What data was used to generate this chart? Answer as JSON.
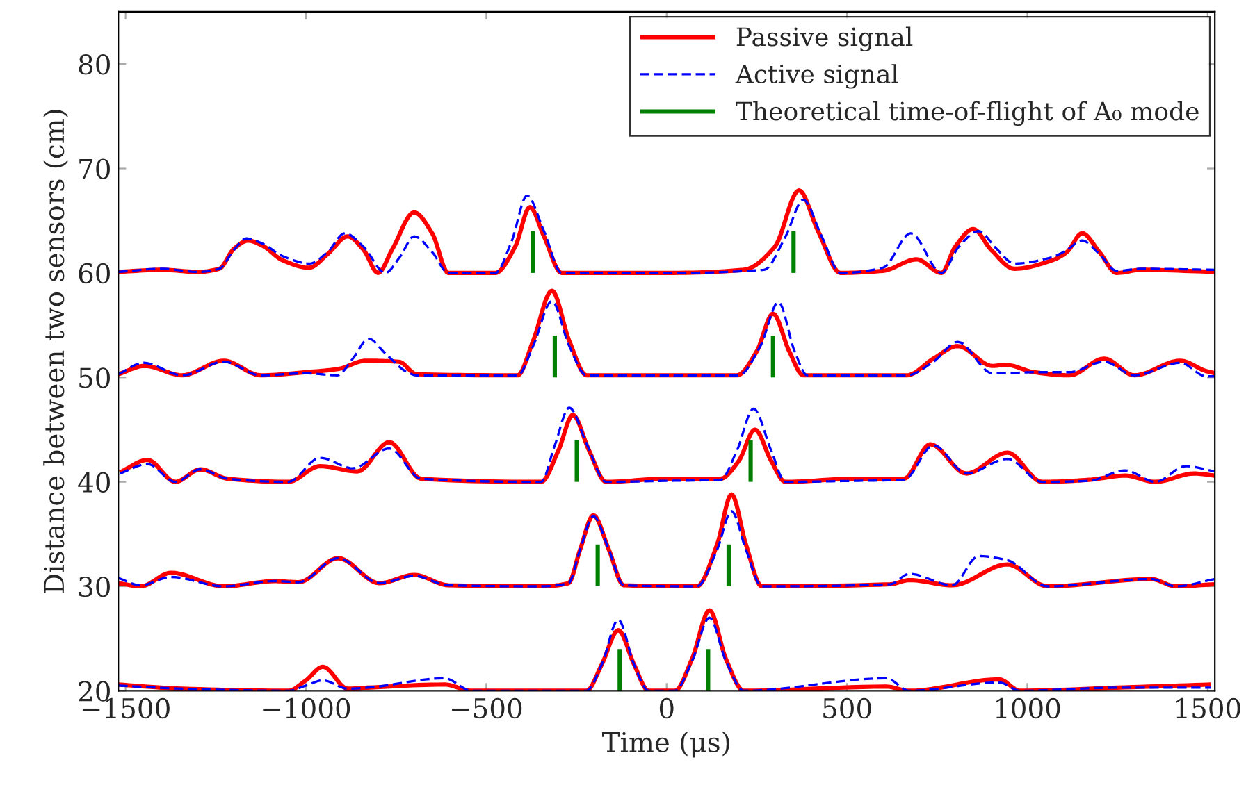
{
  "chart_data": {
    "type": "line",
    "xlabel": "Time (μs)",
    "ylabel": "Distance between two sensors (cm)",
    "xlim": [
      -1520,
      1520
    ],
    "ylim": [
      20,
      85
    ],
    "xticks": [
      -1500,
      -1000,
      -500,
      0,
      500,
      1000,
      1500
    ],
    "yticks": [
      20,
      30,
      40,
      50,
      60,
      70,
      80
    ],
    "grid": false,
    "legend": "top right",
    "marker": "none",
    "series": [
      {
        "name": "Passive signal",
        "color": "#ff0000",
        "line_style": "solid",
        "x": [
          -1520,
          -1400,
          -1300,
          -1240,
          -1200,
          -1160,
          -1120,
          -1064,
          -991,
          -940,
          -884,
          -840,
          -800,
          -760,
          -700,
          -650,
          -605,
          -475,
          -420,
          -379,
          -340,
          -291,
          0,
          214,
          300,
          367,
          420,
          482,
          600,
          693,
          762,
          800,
          850,
          900,
          964,
          1068,
          1110,
          1152,
          1200,
          1248,
          1316,
          1520
        ],
        "values": [
          60.1,
          60.3,
          60.1,
          60.4,
          62.3,
          63.1,
          62.6,
          61.2,
          60.5,
          61.8,
          63.5,
          62.2,
          60.0,
          62.3,
          65.8,
          63.8,
          60.0,
          60.0,
          62.5,
          66.3,
          63.5,
          60.0,
          60.0,
          60.3,
          62.5,
          67.9,
          64.0,
          60.0,
          60.2,
          61.3,
          60.0,
          62.5,
          64.2,
          62.2,
          60.4,
          61.2,
          62.0,
          63.8,
          62.0,
          60.0,
          60.3,
          60.1
        ]
      },
      {
        "name": "Active signal",
        "color": "#0000ff",
        "line_style": "dashed",
        "x": [
          -1520,
          -1400,
          -1300,
          -1240,
          -1200,
          -1165,
          -1120,
          -1064,
          -990,
          -940,
          -892,
          -840,
          -780,
          -740,
          -700,
          -650,
          -605,
          -475,
          -430,
          -387,
          -340,
          -291,
          0,
          270,
          330,
          379,
          430,
          482,
          600,
          677,
          762,
          810,
          865,
          915,
          964,
          1068,
          1110,
          1152,
          1200,
          1248,
          1316,
          1520
        ],
        "values": [
          60.1,
          60.4,
          60.1,
          60.4,
          62.2,
          63.3,
          62.8,
          61.6,
          60.9,
          62.0,
          63.8,
          62.5,
          60.0,
          61.5,
          63.5,
          62.0,
          60.0,
          60.0,
          63.0,
          67.4,
          64.0,
          60.0,
          60.0,
          60.3,
          63.5,
          67.0,
          63.5,
          60.0,
          60.5,
          63.8,
          60.0,
          62.5,
          64.0,
          62.3,
          60.9,
          61.5,
          62.2,
          63.1,
          61.8,
          60.2,
          60.4,
          60.3
        ]
      },
      {
        "color": "#ff0000",
        "line_style": "solid",
        "x": [
          -1520,
          -1447,
          -1343,
          -1228,
          -1125,
          -1000,
          -911,
          -834,
          -742,
          -693,
          -413,
          -370,
          -318,
          -270,
          -222,
          195,
          250,
          295,
          340,
          379,
          666,
          740,
          807,
          903,
          941,
          1018,
          1117,
          1213,
          1297,
          1424,
          1496,
          1520
        ],
        "values": [
          50.3,
          51.1,
          50.2,
          51.6,
          50.2,
          50.5,
          50.8,
          51.6,
          51.5,
          50.3,
          50.2,
          53.5,
          58.3,
          53.5,
          50.2,
          50.2,
          52.5,
          56.1,
          52.5,
          50.2,
          50.2,
          51.8,
          53.0,
          51.1,
          51.2,
          50.5,
          50.2,
          51.8,
          50.2,
          51.6,
          50.6,
          50.4
        ]
      },
      {
        "color": "#0000ff",
        "line_style": "dashed",
        "x": [
          -1520,
          -1450,
          -1343,
          -1228,
          -1125,
          -1000,
          -913,
          -870,
          -826,
          -780,
          -719,
          -693,
          -413,
          -370,
          -318,
          -270,
          -222,
          200,
          260,
          310,
          355,
          390,
          666,
          740,
          807,
          903,
          941,
          1018,
          1117,
          1213,
          1297,
          1424,
          1496,
          1520
        ],
        "values": [
          50.3,
          51.4,
          50.2,
          51.5,
          50.2,
          50.4,
          50.2,
          51.8,
          53.7,
          52.3,
          50.5,
          50.2,
          50.2,
          53.0,
          57.3,
          53.0,
          50.2,
          50.2,
          53.0,
          57.2,
          52.5,
          50.2,
          50.2,
          51.5,
          53.4,
          50.4,
          50.4,
          50.5,
          50.5,
          51.5,
          50.2,
          51.4,
          50.1,
          50.1
        ]
      },
      {
        "color": "#ff0000",
        "line_style": "solid",
        "x": [
          -1516,
          -1439,
          -1362,
          -1293,
          -1217,
          -1049,
          -961,
          -857,
          -769,
          -681,
          -348,
          -300,
          -260,
          -215,
          -168,
          -4,
          149,
          200,
          245,
          290,
          329,
          520,
          658,
          731,
          831,
          945,
          1041,
          1171,
          1271,
          1355,
          1462,
          1520
        ],
        "values": [
          40.9,
          42.1,
          40.0,
          41.2,
          40.3,
          40.0,
          41.5,
          41.0,
          43.8,
          40.3,
          40.0,
          43.0,
          46.4,
          43.0,
          40.0,
          40.3,
          40.3,
          42.0,
          45.0,
          42.0,
          40.0,
          40.3,
          40.3,
          43.6,
          40.8,
          42.8,
          40.0,
          40.2,
          40.6,
          40.0,
          40.8,
          40.6
        ]
      },
      {
        "color": "#0000ff",
        "line_style": "dashed",
        "x": [
          -1516,
          -1439,
          -1362,
          -1293,
          -1217,
          -1049,
          -961,
          -870,
          -769,
          -681,
          -348,
          -310,
          -270,
          -220,
          -168,
          -4,
          149,
          195,
          241,
          290,
          329,
          520,
          658,
          740,
          831,
          945,
          1041,
          1171,
          1271,
          1355,
          1439,
          1520
        ],
        "values": [
          40.8,
          41.7,
          40.0,
          41.2,
          40.3,
          40.0,
          42.3,
          41.3,
          43.2,
          40.3,
          40.0,
          43.5,
          47.1,
          43.5,
          40.0,
          40.1,
          40.2,
          43.0,
          47.0,
          43.0,
          40.0,
          40.1,
          40.2,
          43.5,
          40.8,
          42.2,
          40.0,
          40.1,
          41.1,
          40.0,
          41.5,
          41.0
        ]
      },
      {
        "color": "#ff0000",
        "line_style": "solid",
        "x": [
          -1520,
          -1458,
          -1374,
          -1228,
          -1087,
          -1020,
          -911,
          -796,
          -700,
          -605,
          -348,
          -272,
          -240,
          -203,
          -160,
          -119,
          84,
          140,
          180,
          220,
          264,
          620,
          673,
          792,
          945,
          1056,
          1343,
          1412,
          1520
        ],
        "values": [
          30.3,
          30.0,
          31.3,
          30.0,
          30.5,
          30.4,
          32.7,
          30.3,
          31.1,
          30.1,
          30.0,
          30.3,
          33.5,
          36.8,
          33.5,
          30.1,
          30.0,
          34.0,
          38.8,
          34.0,
          30.0,
          30.2,
          30.6,
          30.1,
          32.1,
          30.0,
          30.7,
          30.0,
          30.2
        ]
      },
      {
        "color": "#0000ff",
        "line_style": "dashed",
        "x": [
          -1520,
          -1458,
          -1374,
          -1228,
          -1087,
          -1020,
          -911,
          -796,
          -700,
          -605,
          -348,
          -272,
          -240,
          -203,
          -160,
          -119,
          84,
          140,
          180,
          220,
          264,
          620,
          673,
          792,
          865,
          945,
          1056,
          1343,
          1412,
          1520
        ],
        "values": [
          30.8,
          30.1,
          30.9,
          30.0,
          30.5,
          30.4,
          32.7,
          30.3,
          31.0,
          30.1,
          30.0,
          30.3,
          33.5,
          36.7,
          33.5,
          30.1,
          30.0,
          33.5,
          37.2,
          33.5,
          30.0,
          30.2,
          31.2,
          30.1,
          32.9,
          32.5,
          30.0,
          30.7,
          30.0,
          30.7
        ]
      },
      {
        "color": "#ff0000",
        "line_style": "solid",
        "x": [
          -1520,
          -1343,
          -1049,
          -1000,
          -953,
          -884,
          -830,
          -616,
          -540,
          -222,
          -180,
          -134,
          -90,
          -50,
          23,
          70,
          119,
          165,
          214,
          609,
          673,
          922,
          980,
          1248,
          1509
        ],
        "values": [
          20.6,
          20.2,
          20.0,
          21.0,
          22.3,
          20.2,
          20.3,
          20.6,
          20.0,
          20.0,
          22.5,
          25.8,
          22.5,
          20.0,
          20.0,
          23.0,
          27.7,
          23.0,
          20.0,
          20.4,
          20.0,
          21.1,
          20.0,
          20.3,
          20.6
        ]
      },
      {
        "color": "#0000ff",
        "line_style": "dashed",
        "x": [
          -1520,
          -1343,
          -1049,
          -1000,
          -953,
          -884,
          -830,
          -616,
          -540,
          -222,
          -180,
          -134,
          -90,
          -50,
          23,
          70,
          119,
          165,
          214,
          609,
          673,
          922,
          980,
          1248,
          1509
        ],
        "values": [
          20.5,
          20.2,
          20.0,
          20.5,
          21.0,
          20.2,
          20.3,
          21.2,
          20.0,
          20.0,
          22.5,
          26.8,
          22.5,
          20.0,
          20.0,
          22.8,
          27.0,
          22.8,
          20.0,
          21.2,
          20.0,
          20.8,
          20.0,
          20.3,
          20.3
        ]
      },
      {
        "name": "Theoretical time-of-flight of A₀ mode",
        "color": "#008000",
        "line_style": "solid",
        "x": [
          -130,
          -130
        ],
        "values": [
          20,
          24
        ]
      },
      {
        "color": "#008000",
        "line_style": "solid",
        "x": [
          115,
          115
        ],
        "values": [
          20,
          24
        ]
      },
      {
        "color": "#008000",
        "line_style": "solid",
        "x": [
          -191,
          -191
        ],
        "values": [
          30,
          34
        ]
      },
      {
        "color": "#008000",
        "line_style": "solid",
        "x": [
          172,
          172
        ],
        "values": [
          30,
          34
        ]
      },
      {
        "color": "#008000",
        "line_style": "solid",
        "x": [
          -249,
          -249
        ],
        "values": [
          40,
          44
        ]
      },
      {
        "color": "#008000",
        "line_style": "solid",
        "x": [
          233,
          233
        ],
        "values": [
          40,
          44
        ]
      },
      {
        "color": "#008000",
        "line_style": "solid",
        "x": [
          -310,
          -310
        ],
        "values": [
          50,
          54
        ]
      },
      {
        "color": "#008000",
        "line_style": "solid",
        "x": [
          295,
          295
        ],
        "values": [
          50,
          54
        ]
      },
      {
        "color": "#008000",
        "line_style": "solid",
        "x": [
          -371,
          -371
        ],
        "values": [
          60,
          64
        ]
      },
      {
        "color": "#008000",
        "line_style": "solid",
        "x": [
          352,
          352
        ],
        "values": [
          60,
          64
        ]
      }
    ]
  }
}
